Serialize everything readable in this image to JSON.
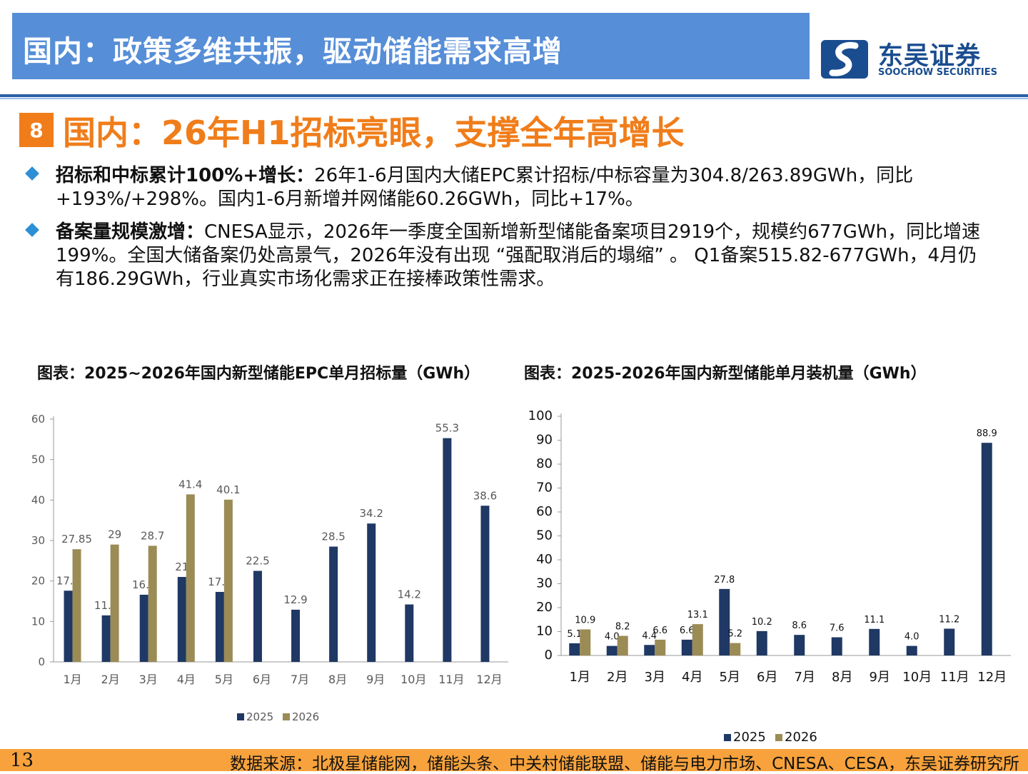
{
  "header": {
    "title": "国内：政策多维共振，驱动储能需求高增"
  },
  "logo": {
    "cn": "东吴证券",
    "en": "SOOCHOW SECURITIES"
  },
  "section": {
    "number": "8",
    "title": "国内：26年H1招标亮眼，支撑全年高增长"
  },
  "bullets": [
    {
      "bold": "招标和中标累计100%+增长：",
      "text": "26年1-6月国内大储EPC累计招标/中标容量为304.8/263.89GWh，同比+193%/+298%。国内1-6月新增并网储能60.26GWh，同比+17%。"
    },
    {
      "bold": "备案量规模激增：",
      "text": "CNESA显示，2026年一季度全国新增新型储能备案项目2919个，规模约677GWh，同比增速199%。全国大储备案仍处高景气，2026年没有出现 “强配取消后的塌缩” 。  Q1备案515.82-677GWh，4月仍有186.29GWh，行业真实市场化需求正在接棒政策性需求。"
    }
  ],
  "colors": {
    "series2025": "#1f3864",
    "series2026": "#9b8b55",
    "orange": "#f07d1a",
    "header_blue": "#568ed8"
  },
  "chart_data": [
    {
      "type": "bar",
      "title": "图表：2025~2026年国内新型储能EPC单月招标量（GWh）",
      "categories": [
        "1月",
        "2月",
        "3月",
        "4月",
        "5月",
        "6月",
        "7月",
        "8月",
        "9月",
        "10月",
        "11月",
        "12月"
      ],
      "series": [
        {
          "name": "2025",
          "values": [
            17.6,
            11.5,
            16.6,
            21,
            17.3,
            22.5,
            12.9,
            28.5,
            34.2,
            14.2,
            55.3,
            38.6
          ],
          "labels": [
            "17.6",
            "11.5",
            "16.6",
            "21",
            "17.3",
            "22.5",
            "12.9",
            "28.5",
            "34.2",
            "14.2",
            "55.3",
            "38.6"
          ]
        },
        {
          "name": "2026",
          "values": [
            27.85,
            29,
            28.7,
            41.4,
            40.1,
            null,
            null,
            null,
            null,
            null,
            null,
            null
          ],
          "labels": [
            "27.85",
            "29",
            "28.7",
            "41.4",
            "40.1",
            "",
            "",
            "",
            "",
            "",
            "",
            ""
          ]
        }
      ],
      "yticks": [
        "0",
        "10",
        "20",
        "30",
        "40",
        "50",
        "60"
      ],
      "ylim": [
        0,
        60
      ],
      "legend": "bottom"
    },
    {
      "type": "bar",
      "title": "图表：2025-2026年国内新型储能单月装机量（GWh）",
      "categories": [
        "1月",
        "2月",
        "3月",
        "4月",
        "5月",
        "6月",
        "7月",
        "8月",
        "9月",
        "10月",
        "11月",
        "12月"
      ],
      "series": [
        {
          "name": "2025",
          "values": [
            5.1,
            4.0,
            4.4,
            6.6,
            27.8,
            10.2,
            8.6,
            7.6,
            11.1,
            4.0,
            11.2,
            88.9
          ],
          "labels": [
            "5.1",
            "4.0",
            "4.4",
            "6.6",
            "27.8",
            "10.2",
            "8.6",
            "7.6",
            "11.1",
            "4.0",
            "11.2",
            "88.9"
          ]
        },
        {
          "name": "2026",
          "values": [
            10.9,
            8.2,
            6.6,
            13.1,
            5.2,
            null,
            null,
            null,
            null,
            null,
            null,
            null
          ],
          "labels": [
            "10.9",
            "8.2",
            "6.6",
            "13.1",
            "5.2",
            "",
            "",
            "",
            "",
            "",
            "",
            ""
          ]
        }
      ],
      "yticks": [
        "0",
        "10",
        "20",
        "30",
        "40",
        "50",
        "60",
        "70",
        "80",
        "90",
        "100"
      ],
      "ylim": [
        0,
        100
      ],
      "legend": "bottom"
    }
  ],
  "footer": {
    "page": "13",
    "source": "数据来源：北极星储能网，储能头条、中关村储能联盟、储能与电力市场、CNESA、CESA，东吴证券研究所"
  }
}
